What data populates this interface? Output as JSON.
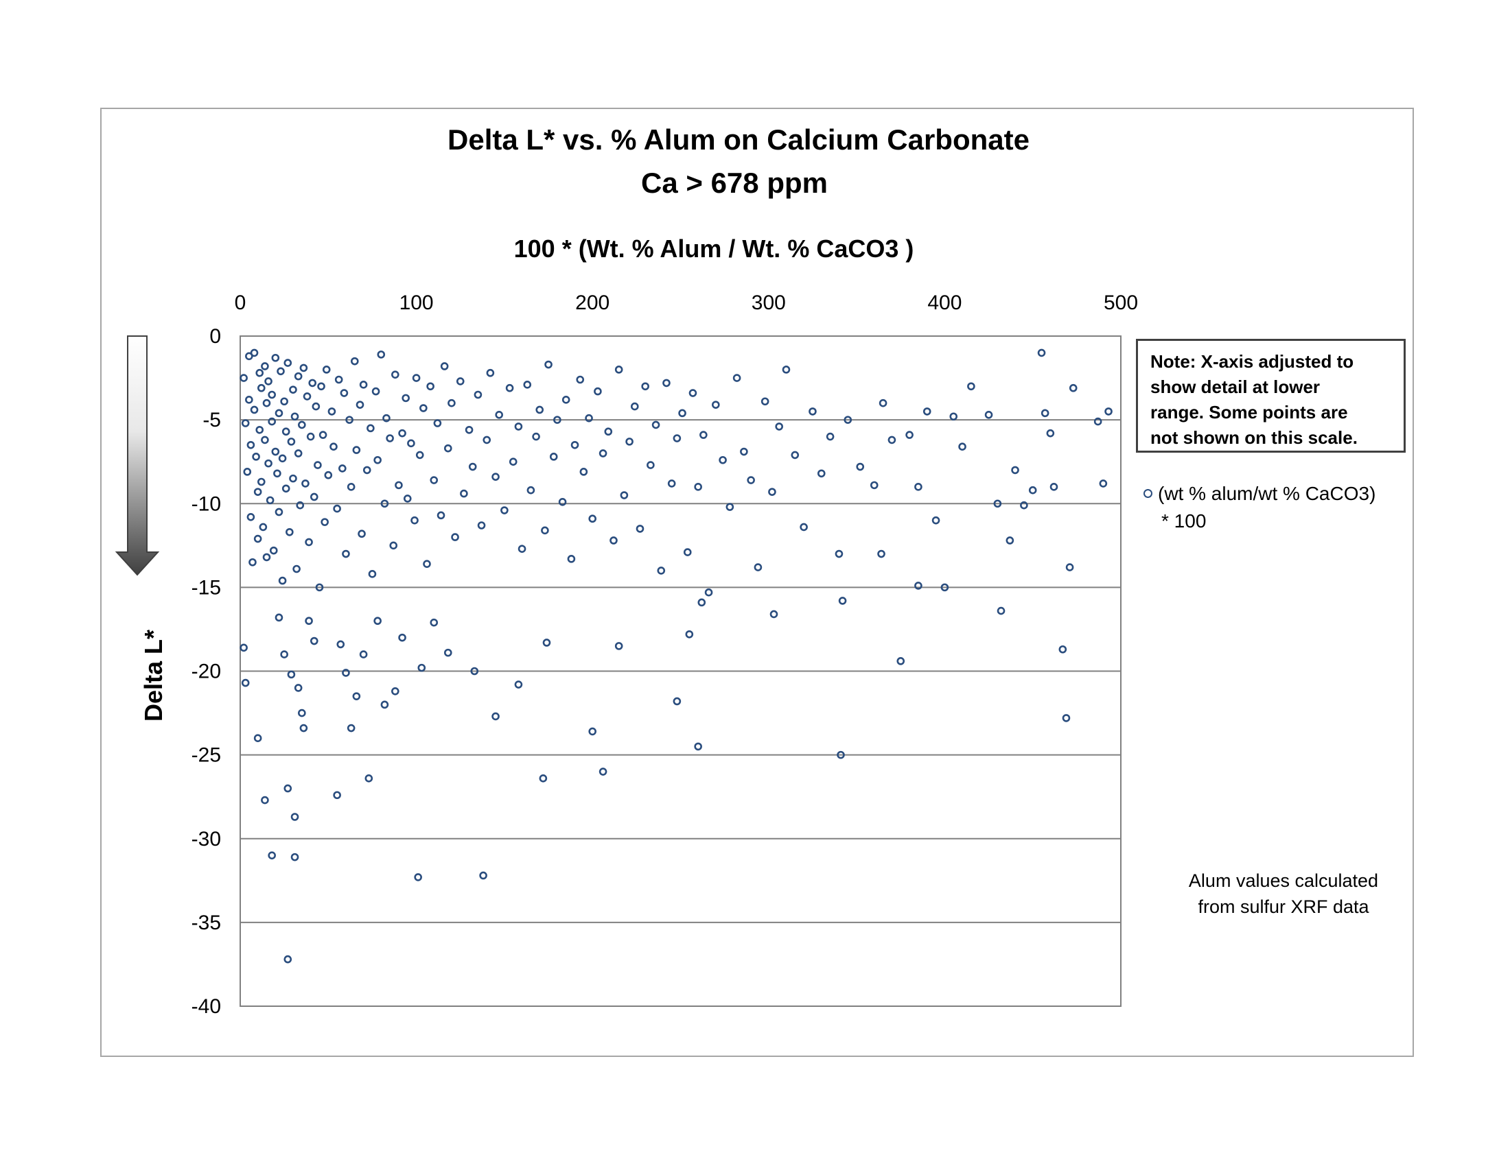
{
  "chart_data": {
    "type": "scatter",
    "title": "Delta L* vs. %  Alum on Calcium Carbonate",
    "subtitle": "Ca > 678 ppm",
    "xlabel": "100 * (Wt. % Alum / Wt. % CaCO3 )",
    "ylabel": "Delta  L*",
    "xlim": [
      0,
      500
    ],
    "ylim": [
      -40,
      0
    ],
    "x_ticks": [
      "0",
      "100",
      "200",
      "300",
      "400",
      "500"
    ],
    "y_ticks": [
      "0",
      "-5",
      "-10",
      "-15",
      "-20",
      "-25",
      "-30",
      "-35",
      "-40"
    ],
    "x_axis_position": "top",
    "grid": "horizontal",
    "legend_position": "right",
    "series": [
      {
        "name": "(wt % alum/wt % CaCO3) * 100",
        "color": "#2a4d7e",
        "marker": "hollow-circle",
        "points": [
          [
            2,
            -2.5
          ],
          [
            3,
            -5.2
          ],
          [
            4,
            -8.1
          ],
          [
            5,
            -1.2
          ],
          [
            5,
            -3.8
          ],
          [
            6,
            -6.5
          ],
          [
            6,
            -10.8
          ],
          [
            7,
            -13.5
          ],
          [
            8,
            -1.0
          ],
          [
            8,
            -4.4
          ],
          [
            9,
            -7.2
          ],
          [
            10,
            -9.3
          ],
          [
            10,
            -12.1
          ],
          [
            11,
            -2.2
          ],
          [
            11,
            -5.6
          ],
          [
            12,
            -3.1
          ],
          [
            12,
            -8.7
          ],
          [
            13,
            -11.4
          ],
          [
            14,
            -1.8
          ],
          [
            14,
            -6.2
          ],
          [
            15,
            -4.0
          ],
          [
            15,
            -13.2
          ],
          [
            16,
            -2.7
          ],
          [
            16,
            -7.6
          ],
          [
            17,
            -9.8
          ],
          [
            18,
            -3.5
          ],
          [
            18,
            -5.1
          ],
          [
            19,
            -12.8
          ],
          [
            20,
            -1.3
          ],
          [
            20,
            -6.9
          ],
          [
            21,
            -8.2
          ],
          [
            22,
            -4.6
          ],
          [
            22,
            -10.5
          ],
          [
            23,
            -2.1
          ],
          [
            24,
            -7.3
          ],
          [
            24,
            -14.6
          ],
          [
            25,
            -3.9
          ],
          [
            26,
            -5.7
          ],
          [
            26,
            -9.1
          ],
          [
            27,
            -1.6
          ],
          [
            28,
            -11.7
          ],
          [
            29,
            -6.3
          ],
          [
            30,
            -3.2
          ],
          [
            30,
            -8.5
          ],
          [
            31,
            -4.8
          ],
          [
            32,
            -13.9
          ],
          [
            33,
            -2.4
          ],
          [
            33,
            -7.0
          ],
          [
            34,
            -10.1
          ],
          [
            35,
            -5.3
          ],
          [
            36,
            -1.9
          ],
          [
            37,
            -8.8
          ],
          [
            38,
            -3.6
          ],
          [
            39,
            -12.3
          ],
          [
            40,
            -6.0
          ],
          [
            41,
            -2.8
          ],
          [
            42,
            -9.6
          ],
          [
            43,
            -4.2
          ],
          [
            44,
            -7.7
          ],
          [
            45,
            -15.0
          ],
          [
            46,
            -3.0
          ],
          [
            47,
            -5.9
          ],
          [
            48,
            -11.1
          ],
          [
            49,
            -2.0
          ],
          [
            50,
            -8.3
          ],
          [
            52,
            -4.5
          ],
          [
            53,
            -6.6
          ],
          [
            55,
            -10.3
          ],
          [
            56,
            -2.6
          ],
          [
            58,
            -7.9
          ],
          [
            59,
            -3.4
          ],
          [
            60,
            -13.0
          ],
          [
            62,
            -5.0
          ],
          [
            63,
            -9.0
          ],
          [
            65,
            -1.5
          ],
          [
            66,
            -6.8
          ],
          [
            68,
            -4.1
          ],
          [
            69,
            -11.8
          ],
          [
            70,
            -2.9
          ],
          [
            72,
            -8.0
          ],
          [
            74,
            -5.5
          ],
          [
            75,
            -14.2
          ],
          [
            77,
            -3.3
          ],
          [
            78,
            -7.4
          ],
          [
            80,
            -1.1
          ],
          [
            82,
            -10.0
          ],
          [
            83,
            -4.9
          ],
          [
            85,
            -6.1
          ],
          [
            87,
            -12.5
          ],
          [
            88,
            -2.3
          ],
          [
            90,
            -8.9
          ],
          [
            92,
            -5.8
          ],
          [
            94,
            -3.7
          ],
          [
            95,
            -9.7
          ],
          [
            97,
            -6.4
          ],
          [
            99,
            -11.0
          ],
          [
            100,
            -2.5
          ],
          [
            102,
            -7.1
          ],
          [
            104,
            -4.3
          ],
          [
            106,
            -13.6
          ],
          [
            108,
            -3.0
          ],
          [
            110,
            -8.6
          ],
          [
            112,
            -5.2
          ],
          [
            114,
            -10.7
          ],
          [
            116,
            -1.8
          ],
          [
            118,
            -6.7
          ],
          [
            120,
            -4.0
          ],
          [
            122,
            -12.0
          ],
          [
            125,
            -2.7
          ],
          [
            127,
            -9.4
          ],
          [
            130,
            -5.6
          ],
          [
            132,
            -7.8
          ],
          [
            135,
            -3.5
          ],
          [
            137,
            -11.3
          ],
          [
            140,
            -6.2
          ],
          [
            142,
            -2.2
          ],
          [
            145,
            -8.4
          ],
          [
            147,
            -4.7
          ],
          [
            150,
            -10.4
          ],
          [
            153,
            -3.1
          ],
          [
            155,
            -7.5
          ],
          [
            158,
            -5.4
          ],
          [
            160,
            -12.7
          ],
          [
            163,
            -2.9
          ],
          [
            165,
            -9.2
          ],
          [
            168,
            -6.0
          ],
          [
            170,
            -4.4
          ],
          [
            173,
            -11.6
          ],
          [
            175,
            -1.7
          ],
          [
            178,
            -7.2
          ],
          [
            180,
            -5.0
          ],
          [
            183,
            -9.9
          ],
          [
            185,
            -3.8
          ],
          [
            188,
            -13.3
          ],
          [
            190,
            -6.5
          ],
          [
            193,
            -2.6
          ],
          [
            195,
            -8.1
          ],
          [
            198,
            -4.9
          ],
          [
            200,
            -10.9
          ],
          [
            203,
            -3.3
          ],
          [
            206,
            -7.0
          ],
          [
            209,
            -5.7
          ],
          [
            212,
            -12.2
          ],
          [
            215,
            -2.0
          ],
          [
            218,
            -9.5
          ],
          [
            221,
            -6.3
          ],
          [
            224,
            -4.2
          ],
          [
            227,
            -11.5
          ],
          [
            230,
            -3.0
          ],
          [
            233,
            -7.7
          ],
          [
            236,
            -5.3
          ],
          [
            239,
            -14.0
          ],
          [
            242,
            -2.8
          ],
          [
            245,
            -8.8
          ],
          [
            248,
            -6.1
          ],
          [
            251,
            -4.6
          ],
          [
            254,
            -12.9
          ],
          [
            257,
            -3.4
          ],
          [
            260,
            -9.0
          ],
          [
            263,
            -5.9
          ],
          [
            266,
            -15.3
          ],
          [
            270,
            -4.1
          ],
          [
            274,
            -7.4
          ],
          [
            278,
            -10.2
          ],
          [
            282,
            -2.5
          ],
          [
            286,
            -6.9
          ],
          [
            290,
            -8.6
          ],
          [
            294,
            -13.8
          ],
          [
            298,
            -3.9
          ],
          [
            302,
            -9.3
          ],
          [
            306,
            -5.4
          ],
          [
            310,
            -2.0
          ],
          [
            315,
            -7.1
          ],
          [
            320,
            -11.4
          ],
          [
            325,
            -4.5
          ],
          [
            330,
            -8.2
          ],
          [
            335,
            -6.0
          ],
          [
            340,
            -13.0
          ],
          [
            345,
            -5.0
          ],
          [
            352,
            -7.8
          ],
          [
            360,
            -8.9
          ],
          [
            365,
            -4.0
          ],
          [
            370,
            -6.2
          ],
          [
            375,
            -19.4
          ],
          [
            380,
            -5.9
          ],
          [
            385,
            -9.0
          ],
          [
            390,
            -4.5
          ],
          [
            395,
            -11.0
          ],
          [
            400,
            -15.0
          ],
          [
            405,
            -4.8
          ],
          [
            410,
            -6.6
          ],
          [
            415,
            -3.0
          ],
          [
            425,
            -4.7
          ],
          [
            430,
            -10.0
          ],
          [
            432,
            -16.4
          ],
          [
            437,
            -12.2
          ],
          [
            440,
            -8.0
          ],
          [
            445,
            -10.1
          ],
          [
            450,
            -9.2
          ],
          [
            455,
            -1.0
          ],
          [
            457,
            -4.6
          ],
          [
            460,
            -5.8
          ],
          [
            462,
            -9.0
          ],
          [
            467,
            -18.7
          ],
          [
            469,
            -22.8
          ],
          [
            471,
            -13.8
          ],
          [
            473,
            -3.1
          ],
          [
            487,
            -5.1
          ],
          [
            490,
            -8.8
          ],
          [
            493,
            -4.5
          ],
          [
            2,
            -18.6
          ],
          [
            3,
            -20.7
          ],
          [
            10,
            -24.0
          ],
          [
            14,
            -27.7
          ],
          [
            18,
            -31.0
          ],
          [
            22,
            -16.8
          ],
          [
            25,
            -19.0
          ],
          [
            27,
            -37.2
          ],
          [
            27,
            -27.0
          ],
          [
            29,
            -20.2
          ],
          [
            31,
            -31.1
          ],
          [
            31,
            -28.7
          ],
          [
            33,
            -21.0
          ],
          [
            35,
            -22.5
          ],
          [
            36,
            -23.4
          ],
          [
            39,
            -17.0
          ],
          [
            42,
            -18.2
          ],
          [
            55,
            -27.4
          ],
          [
            57,
            -18.4
          ],
          [
            60,
            -20.1
          ],
          [
            63,
            -23.4
          ],
          [
            66,
            -21.5
          ],
          [
            70,
            -19.0
          ],
          [
            73,
            -26.4
          ],
          [
            78,
            -17.0
          ],
          [
            82,
            -22.0
          ],
          [
            88,
            -21.2
          ],
          [
            92,
            -18.0
          ],
          [
            101,
            -32.3
          ],
          [
            103,
            -19.8
          ],
          [
            110,
            -17.1
          ],
          [
            118,
            -18.9
          ],
          [
            133,
            -20.0
          ],
          [
            138,
            -32.2
          ],
          [
            145,
            -22.7
          ],
          [
            158,
            -20.8
          ],
          [
            172,
            -26.4
          ],
          [
            174,
            -18.3
          ],
          [
            200,
            -23.6
          ],
          [
            206,
            -26.0
          ],
          [
            215,
            -18.5
          ],
          [
            248,
            -21.8
          ],
          [
            255,
            -17.8
          ],
          [
            260,
            -24.5
          ],
          [
            262,
            -15.9
          ],
          [
            303,
            -16.6
          ],
          [
            341,
            -25.0
          ],
          [
            342,
            -15.8
          ],
          [
            364,
            -13.0
          ],
          [
            385,
            -14.9
          ]
        ]
      }
    ]
  },
  "note": {
    "line1": "Note:   X-axis adjusted to",
    "line2": "show detail at lower",
    "line3": "range.  Some points are",
    "line4": "not shown on this scale."
  },
  "legend": {
    "line1": "(wt % alum/wt % CaCO3)",
    "line2": "* 100"
  },
  "source_note": {
    "line1": "Alum values calculated",
    "line2": "from sulfur XRF data"
  }
}
